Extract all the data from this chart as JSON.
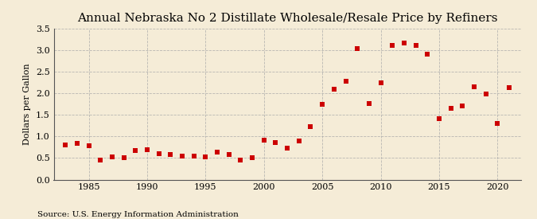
{
  "title": "Annual Nebraska No 2 Distillate Wholesale/Resale Price by Refiners",
  "ylabel": "Dollars per Gallon",
  "source": "Source: U.S. Energy Information Administration",
  "background_color": "#f5ecd7",
  "plot_bg_color": "#f5ecd7",
  "years": [
    1983,
    1984,
    1985,
    1986,
    1987,
    1988,
    1989,
    1990,
    1991,
    1992,
    1993,
    1994,
    1995,
    1996,
    1997,
    1998,
    1999,
    2000,
    2001,
    2002,
    2003,
    2004,
    2005,
    2006,
    2007,
    2008,
    2009,
    2010,
    2011,
    2012,
    2013,
    2014,
    2015,
    2016,
    2017,
    2018,
    2019,
    2020,
    2021
  ],
  "values": [
    0.8,
    0.84,
    0.79,
    0.46,
    0.52,
    0.5,
    0.67,
    0.69,
    0.6,
    0.58,
    0.55,
    0.55,
    0.53,
    0.63,
    0.59,
    0.46,
    0.5,
    0.91,
    0.85,
    0.73,
    0.89,
    1.22,
    1.75,
    2.09,
    2.27,
    3.04,
    1.77,
    2.25,
    3.1,
    3.17,
    3.1,
    2.9,
    1.42,
    1.65,
    1.7,
    2.15,
    1.98,
    1.3,
    2.13
  ],
  "marker_color": "#cc0000",
  "marker_size": 14,
  "xlim": [
    1982,
    2022
  ],
  "ylim": [
    0.0,
    3.5
  ],
  "yticks": [
    0.0,
    0.5,
    1.0,
    1.5,
    2.0,
    2.5,
    3.0,
    3.5
  ],
  "xticks": [
    1985,
    1990,
    1995,
    2000,
    2005,
    2010,
    2015,
    2020
  ],
  "title_fontsize": 11,
  "tick_fontsize": 8,
  "ylabel_fontsize": 8,
  "source_fontsize": 7.5
}
